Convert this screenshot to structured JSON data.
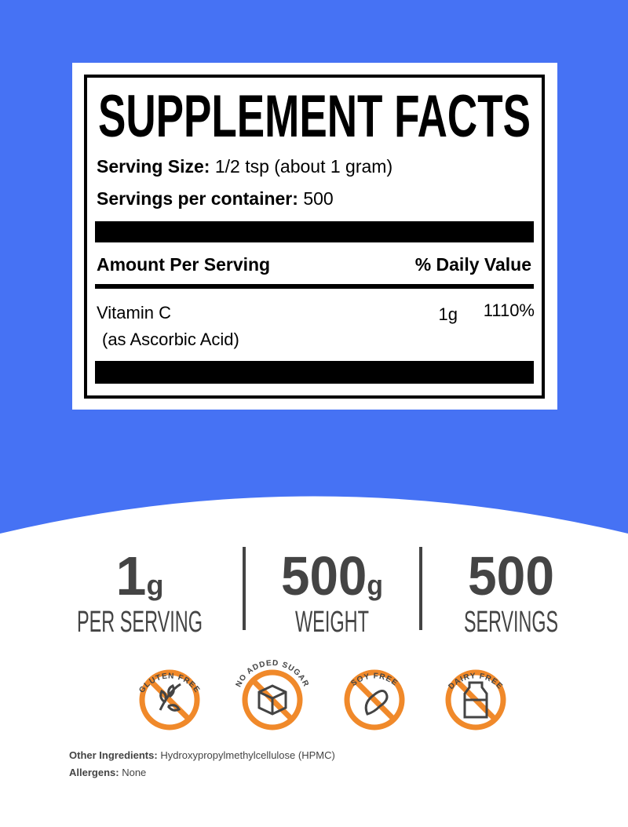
{
  "facts": {
    "title": "SUPPLEMENT FACTS",
    "serving_size_label": "Serving Size:",
    "serving_size": "1/2 tsp (about 1 gram)",
    "servings_label": "Servings per container:",
    "servings": "500",
    "amount_header": "Amount Per Serving",
    "dv_header": "% Daily Value",
    "rows": [
      {
        "name": "Vitamin C",
        "sub": "(as Ascorbic Acid)",
        "amount": "1g",
        "dv": "1110%"
      }
    ]
  },
  "stats": [
    {
      "value": "1",
      "unit": "g",
      "label": "PER SERVING"
    },
    {
      "value": "500",
      "unit": "g",
      "label": "WEIGHT"
    },
    {
      "value": "500",
      "label": "SERVINGS"
    }
  ],
  "badges": [
    "GLUTEN FREE",
    "NO ADDED SUGAR",
    "SOY FREE",
    "DAIRY FREE"
  ],
  "footer": {
    "other_ingredients_label": "Other Ingredients:",
    "other_ingredients": "Hydroxypropylmethylcellulose (HPMC)",
    "allergens_label": "Allergens:",
    "allergens": "None"
  }
}
